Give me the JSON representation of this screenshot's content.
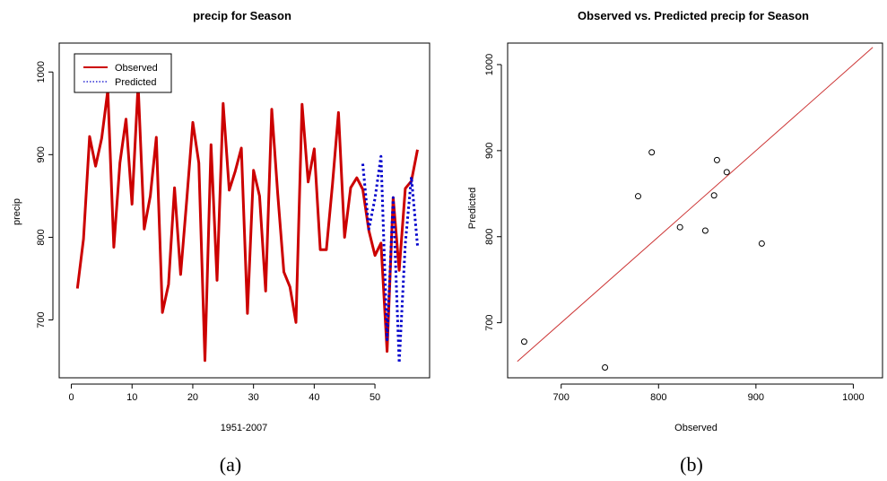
{
  "chart_data": [
    {
      "type": "line",
      "panel_caption": "(a)",
      "title": "precip for Season",
      "xlabel": "1951-2007",
      "ylabel": "precip",
      "xlim": [
        -2,
        59
      ],
      "ylim": [
        630,
        1035
      ],
      "xticks": [
        0,
        10,
        20,
        30,
        40,
        50
      ],
      "yticks": [
        700,
        800,
        900,
        1000
      ],
      "grid": false,
      "legend": "top-left",
      "series": [
        {
          "name": "Observed",
          "color": "#cc0000",
          "style": "solid",
          "x": [
            1,
            2,
            3,
            4,
            5,
            6,
            7,
            8,
            9,
            10,
            11,
            12,
            13,
            14,
            15,
            16,
            17,
            18,
            19,
            20,
            21,
            22,
            23,
            24,
            25,
            26,
            27,
            28,
            29,
            30,
            31,
            32,
            33,
            34,
            35,
            36,
            37,
            38,
            39,
            40,
            41,
            42,
            43,
            44,
            45,
            46,
            47,
            48,
            49,
            50,
            51,
            52,
            53,
            54,
            55,
            56,
            57
          ],
          "y": [
            738,
            798,
            922,
            886,
            920,
            978,
            788,
            890,
            943,
            840,
            985,
            810,
            850,
            921,
            709,
            743,
            860,
            755,
            845,
            939,
            890,
            651,
            912,
            748,
            962,
            857,
            880,
            908,
            708,
            881,
            850,
            735,
            955,
            852,
            758,
            740,
            697,
            961,
            867,
            907,
            785,
            785,
            864,
            951,
            800,
            860,
            872,
            858,
            808,
            778,
            793,
            662,
            848,
            760,
            859,
            868,
            906
          ]
        },
        {
          "name": "Predicted",
          "color": "#0000cc",
          "style": "dotted",
          "x": [
            48,
            49,
            50,
            51,
            52,
            53,
            54,
            55,
            56,
            57
          ],
          "y": [
            889,
            810,
            847,
            898,
            676,
            848,
            648,
            792,
            873,
            790
          ]
        }
      ]
    },
    {
      "type": "scatter",
      "panel_caption": "(b)",
      "title": "Observed vs. Predicted precip for Season",
      "xlabel": "Observed",
      "ylabel": "Predicted",
      "xlim": [
        645,
        1030
      ],
      "ylim": [
        636,
        1025
      ],
      "xticks": [
        700,
        800,
        900,
        1000
      ],
      "yticks": [
        700,
        800,
        900,
        1000
      ],
      "grid": false,
      "points": {
        "x": [
          662,
          745,
          779,
          793,
          822,
          848,
          857,
          860,
          870,
          906
        ],
        "y": [
          678,
          648,
          847,
          898,
          811,
          807,
          848,
          889,
          875,
          792
        ]
      },
      "reference_line": {
        "x": [
          655,
          1020
        ],
        "y": [
          655,
          1020
        ],
        "color": "#cc3333"
      }
    }
  ]
}
